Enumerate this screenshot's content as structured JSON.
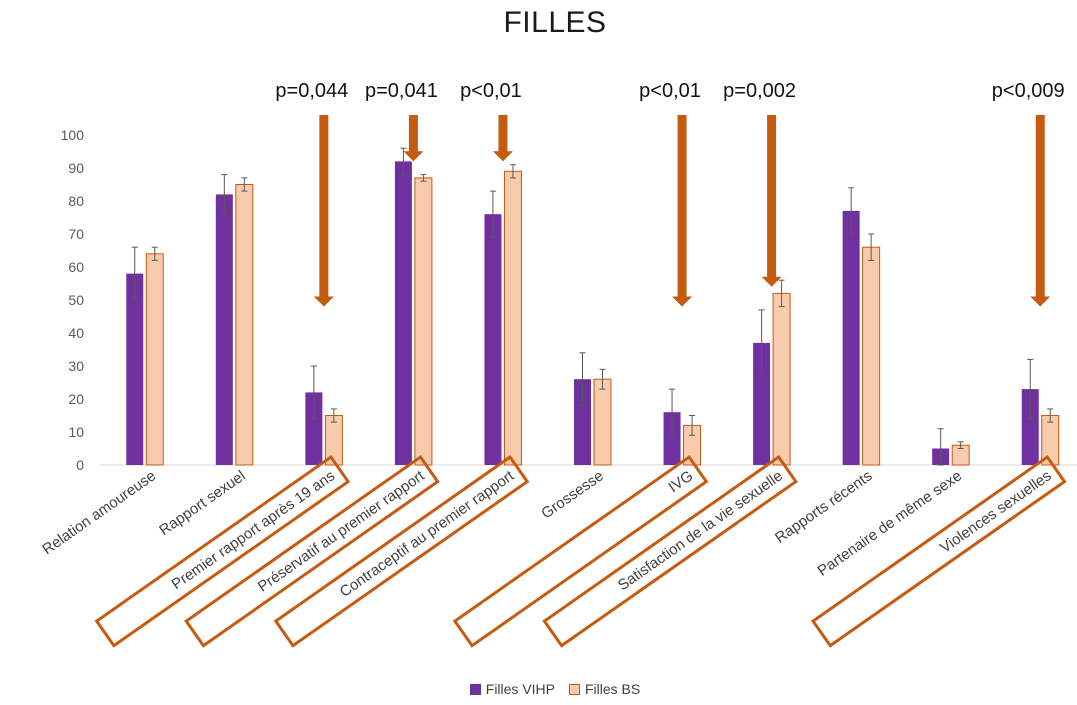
{
  "chart_data": {
    "type": "bar",
    "title": "FILLES",
    "xlabel": "",
    "ylabel": "",
    "ylim": [
      0,
      100
    ],
    "yticks": [
      0,
      10,
      20,
      30,
      40,
      50,
      60,
      70,
      80,
      90,
      100
    ],
    "grid": false,
    "legend_position": "bottom",
    "categories": [
      "Relation amoureuse",
      "Rapport sexuel",
      "Premier rapport après 19 ans",
      "Préservatif au premier rapport",
      "Contraceptif au premier rapport",
      "Grossesse",
      "IVG",
      "Satisfaction de la vie sexuelle",
      "Rapports récents",
      "Partenaire de même sexe",
      "Violences sexuelles"
    ],
    "highlighted_categories": [
      2,
      3,
      4,
      6,
      7,
      10
    ],
    "series": [
      {
        "name": "Filles VIHP",
        "color": "#7030A0",
        "values": [
          58,
          82,
          22,
          92,
          76,
          26,
          16,
          37,
          77,
          5,
          23
        ],
        "error": [
          8,
          6,
          8,
          4,
          7,
          8,
          7,
          10,
          7,
          6,
          9
        ]
      },
      {
        "name": "Filles BS",
        "color": "#F8CBAD",
        "border": "#C55A11",
        "values": [
          64,
          85,
          15,
          87,
          89,
          26,
          12,
          52,
          66,
          6,
          15
        ],
        "error": [
          2,
          2,
          2,
          1,
          2,
          3,
          3,
          4,
          4,
          1,
          2
        ]
      }
    ],
    "annotations": [
      {
        "category": 2,
        "text": "p=0,044",
        "arrow_to": 55
      },
      {
        "category": 3,
        "text": "p=0,041",
        "arrow_to": 99
      },
      {
        "category": 4,
        "text": "p<0,01",
        "arrow_to": 99
      },
      {
        "category": 6,
        "text": "p<0,01",
        "arrow_to": 55
      },
      {
        "category": 7,
        "text": "p=0,002",
        "arrow_to": 61
      },
      {
        "category": 10,
        "text": "p<0,009",
        "arrow_to": 55
      }
    ],
    "arrow_color": "#C55A11",
    "highlight_color": "#C55A11"
  }
}
